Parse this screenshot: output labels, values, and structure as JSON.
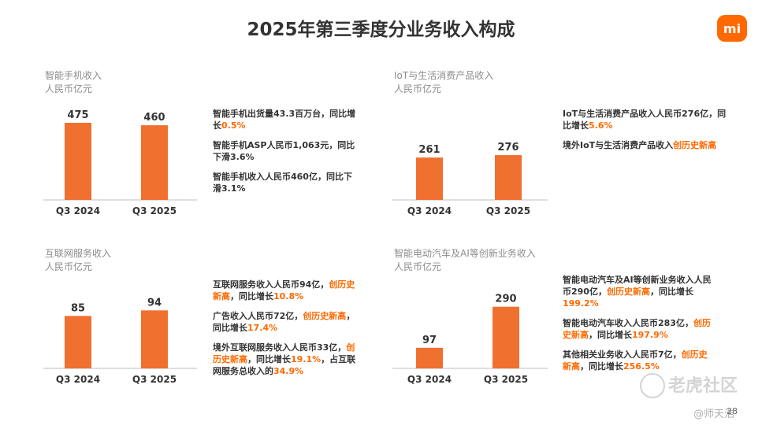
{
  "title": "2025年第三季度分业务收入构成",
  "logo_text": "mi",
  "colors": {
    "bar": "#F07030",
    "highlight": "#FF6900",
    "text": "#333333",
    "muted": "#8C8C8C"
  },
  "panels": [
    {
      "title_line1": "智能手机收入",
      "title_line2": "人民币亿元",
      "notes": [
        {
          "parts": [
            {
              "t": "智能手机出货量43.3百万台，同比增长"
            },
            {
              "t": "0.5%",
              "hl": true
            }
          ]
        },
        {
          "parts": [
            {
              "t": "智能手机ASP人民币1,063元，同比下滑3.6%"
            }
          ]
        },
        {
          "parts": [
            {
              "t": "智能手机收入人民币460亿，同比下滑3.1%"
            }
          ]
        }
      ]
    },
    {
      "title_line1": "IoT与生活消费产品收入",
      "title_line2": "人民币亿元",
      "notes": [
        {
          "parts": [
            {
              "t": "IoT与生活消费产品收入人民币276亿，同比增长"
            },
            {
              "t": "5.6%",
              "hl": true
            }
          ]
        },
        {
          "parts": [
            {
              "t": "境外IoT与生活消费产品收入"
            },
            {
              "t": "创历史新高",
              "hl": true
            }
          ]
        }
      ]
    },
    {
      "title_line1": "互联网服务收入",
      "title_line2": "人民币亿元",
      "notes": [
        {
          "parts": [
            {
              "t": "互联网服务收入人民币94亿，"
            },
            {
              "t": "创历史新高",
              "hl": true
            },
            {
              "t": "，同比增长"
            },
            {
              "t": "10.8%",
              "hl": true
            }
          ]
        },
        {
          "parts": [
            {
              "t": "广告收入人民币72亿，"
            },
            {
              "t": "创历史新高",
              "hl": true
            },
            {
              "t": "，同比增长"
            },
            {
              "t": "17.4%",
              "hl": true
            }
          ]
        },
        {
          "parts": [
            {
              "t": "境外互联网服务收入人民币33亿，"
            },
            {
              "t": "创历史新高",
              "hl": true
            },
            {
              "t": "，同比增长"
            },
            {
              "t": "19.1%",
              "hl": true
            },
            {
              "t": "，占互联网服务总收入的"
            },
            {
              "t": "34.9%",
              "hl": true
            }
          ]
        }
      ]
    },
    {
      "title_line1": "智能电动汽车及AI等创新业务收入",
      "title_line2": "人民币亿元",
      "notes": [
        {
          "parts": [
            {
              "t": "智能电动汽车及AI等创新业务收入人民币290亿，"
            },
            {
              "t": "创历史新高",
              "hl": true
            },
            {
              "t": "，同比增长"
            },
            {
              "t": "199.2%",
              "hl": true
            }
          ]
        },
        {
          "parts": [
            {
              "t": "智能电动汽车收入人民币283亿，"
            },
            {
              "t": "创历史新高",
              "hl": true
            },
            {
              "t": "，同比增长"
            },
            {
              "t": "197.9%",
              "hl": true
            }
          ]
        },
        {
          "parts": [
            {
              "t": "其他相关业务收入人民币7亿，"
            },
            {
              "t": "创历史新高",
              "hl": true
            },
            {
              "t": "，同比增长"
            },
            {
              "t": "256.5%",
              "hl": true
            }
          ]
        }
      ]
    }
  ],
  "chart_data": [
    {
      "type": "bar",
      "title": "智能手机收入",
      "ylabel": "人民币亿元",
      "categories": [
        "Q3 2024",
        "Q3 2025"
      ],
      "values": [
        475,
        460
      ]
    },
    {
      "type": "bar",
      "title": "IoT与生活消费产品收入",
      "ylabel": "人民币亿元",
      "categories": [
        "Q3 2024",
        "Q3 2025"
      ],
      "values": [
        261,
        276
      ]
    },
    {
      "type": "bar",
      "title": "互联网服务收入",
      "ylabel": "人民币亿元",
      "categories": [
        "Q3 2024",
        "Q3 2025"
      ],
      "values": [
        85,
        94
      ]
    },
    {
      "type": "bar",
      "title": "智能电动汽车及AI等创新业务收入",
      "ylabel": "人民币亿元",
      "categories": [
        "Q3 2024",
        "Q3 2025"
      ],
      "values": [
        97,
        290
      ]
    }
  ],
  "watermark": {
    "text": "老虎社区",
    "author": "@师天浩"
  },
  "page_number": "28"
}
